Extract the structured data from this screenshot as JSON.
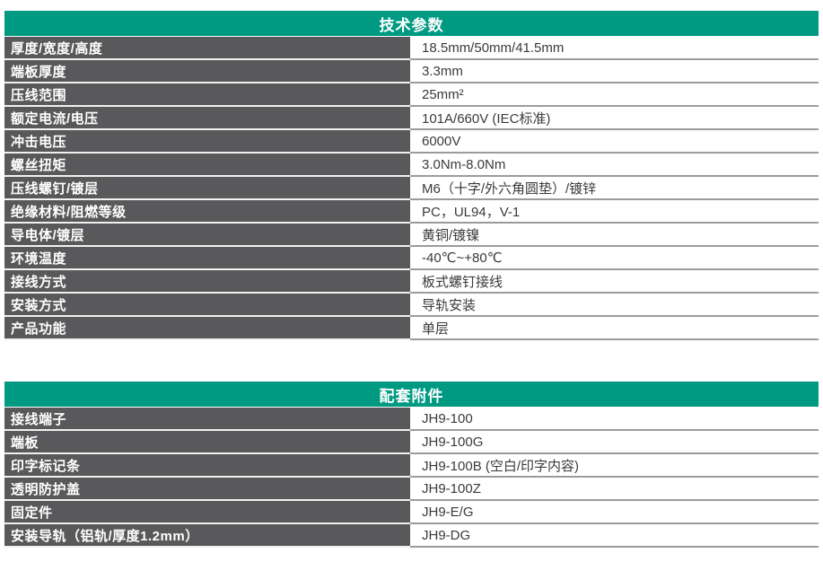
{
  "colors": {
    "header_bg": "#009a83",
    "header_text": "#ffffff",
    "label_bg": "#59595b",
    "label_text": "#ffffff",
    "value_text": "#3a3a3a",
    "label_divider": "#f1f1f1",
    "value_divider": "#9b9b9b"
  },
  "tables": [
    {
      "title": "技术参数",
      "rows": [
        {
          "label": "厚度/宽度/高度",
          "value": "18.5mm/50mm/41.5mm"
        },
        {
          "label": "端板厚度",
          "value": "3.3mm"
        },
        {
          "label": "压线范围",
          "value": "25mm²"
        },
        {
          "label": "额定电流/电压",
          "value": "101A/660V (IEC标准)"
        },
        {
          "label": "冲击电压",
          "value": "6000V"
        },
        {
          "label": "螺丝扭矩",
          "value": "3.0Nm-8.0Nm"
        },
        {
          "label": "压线螺钉/镀层",
          "value": "M6（十字/外六角圆垫）/镀锌"
        },
        {
          "label": "绝缘材料/阻燃等级",
          "value": "PC，UL94，V-1"
        },
        {
          "label": "导电体/镀层",
          "value": "黄铜/镀镍"
        },
        {
          "label": "环境温度",
          "value": "-40℃~+80℃"
        },
        {
          "label": "接线方式",
          "value": "板式螺钉接线"
        },
        {
          "label": "安装方式",
          "value": "导轨安装"
        },
        {
          "label": "产品功能",
          "value": "单层"
        }
      ]
    },
    {
      "title": "配套附件",
      "rows": [
        {
          "label": "接线端子",
          "value": "JH9-100"
        },
        {
          "label": "端板",
          "value": "JH9-100G"
        },
        {
          "label": "印字标记条",
          "value": "JH9-100B (空白/印字内容)"
        },
        {
          "label": "透明防护盖",
          "value": "JH9-100Z"
        },
        {
          "label": "固定件",
          "value": "JH9-E/G"
        },
        {
          "label": "安装导轨（铝轨/厚度1.2mm）",
          "value": "JH9-DG"
        }
      ]
    }
  ]
}
